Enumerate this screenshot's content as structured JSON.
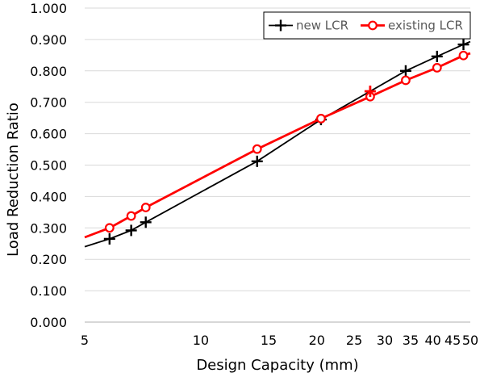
{
  "chart_data": {
    "type": "line",
    "title": "",
    "xlabel": "Design Capacity (mm)",
    "ylabel": "Load Reduction Ratio",
    "x_scale": "log",
    "xlim": [
      5,
      50
    ],
    "ylim": [
      0,
      1
    ],
    "x_ticks": [
      5,
      10,
      15,
      20,
      25,
      30,
      35,
      40,
      45,
      50
    ],
    "x_tick_labels": [
      "5",
      "10",
      "15",
      "20",
      "25",
      "30",
      "35",
      "40",
      "45",
      "50"
    ],
    "y_ticks": [
      0,
      0.1,
      0.2,
      0.3,
      0.4,
      0.5,
      0.6,
      0.7,
      0.8,
      0.9,
      1.0
    ],
    "y_tick_labels": [
      "0.000",
      "0.100",
      "0.200",
      "0.300",
      "0.400",
      "0.500",
      "0.600",
      "0.700",
      "0.800",
      "0.900",
      "1.000"
    ],
    "grid": "horizontal",
    "legend_position": "top-right",
    "series": [
      {
        "name": "new LCR",
        "color": "#000000",
        "marker": "plus",
        "line_x": [
          5,
          5.8,
          6.6,
          7.2,
          14,
          20.5,
          34,
          41,
          48,
          50
        ],
        "line_y": [
          0.24,
          0.265,
          0.292,
          0.318,
          0.512,
          0.645,
          0.8,
          0.846,
          0.884,
          0.893
        ],
        "x": [
          5.8,
          6.6,
          7.2,
          14,
          20.5,
          34,
          41,
          48
        ],
        "y": [
          0.265,
          0.292,
          0.318,
          0.512,
          0.645,
          0.8,
          0.846,
          0.884
        ]
      },
      {
        "name": "existing LCR",
        "color": "#ff0000",
        "marker": "circle",
        "line_x": [
          5,
          5.8,
          6.6,
          7.2,
          14,
          20.5,
          27.5,
          34,
          41,
          48,
          50
        ],
        "line_y": [
          0.27,
          0.3,
          0.338,
          0.365,
          0.551,
          0.648,
          0.718,
          0.77,
          0.81,
          0.849,
          0.856
        ],
        "x": [
          5.8,
          6.6,
          7.2,
          14,
          20.5,
          27.5,
          34,
          41,
          48
        ],
        "y": [
          0.3,
          0.338,
          0.365,
          0.551,
          0.648,
          0.718,
          0.77,
          0.81,
          0.849
        ]
      }
    ],
    "annotations": [
      {
        "marker": "plus",
        "color": "#ff0000",
        "x": 27.5,
        "y": 0.735
      }
    ]
  }
}
